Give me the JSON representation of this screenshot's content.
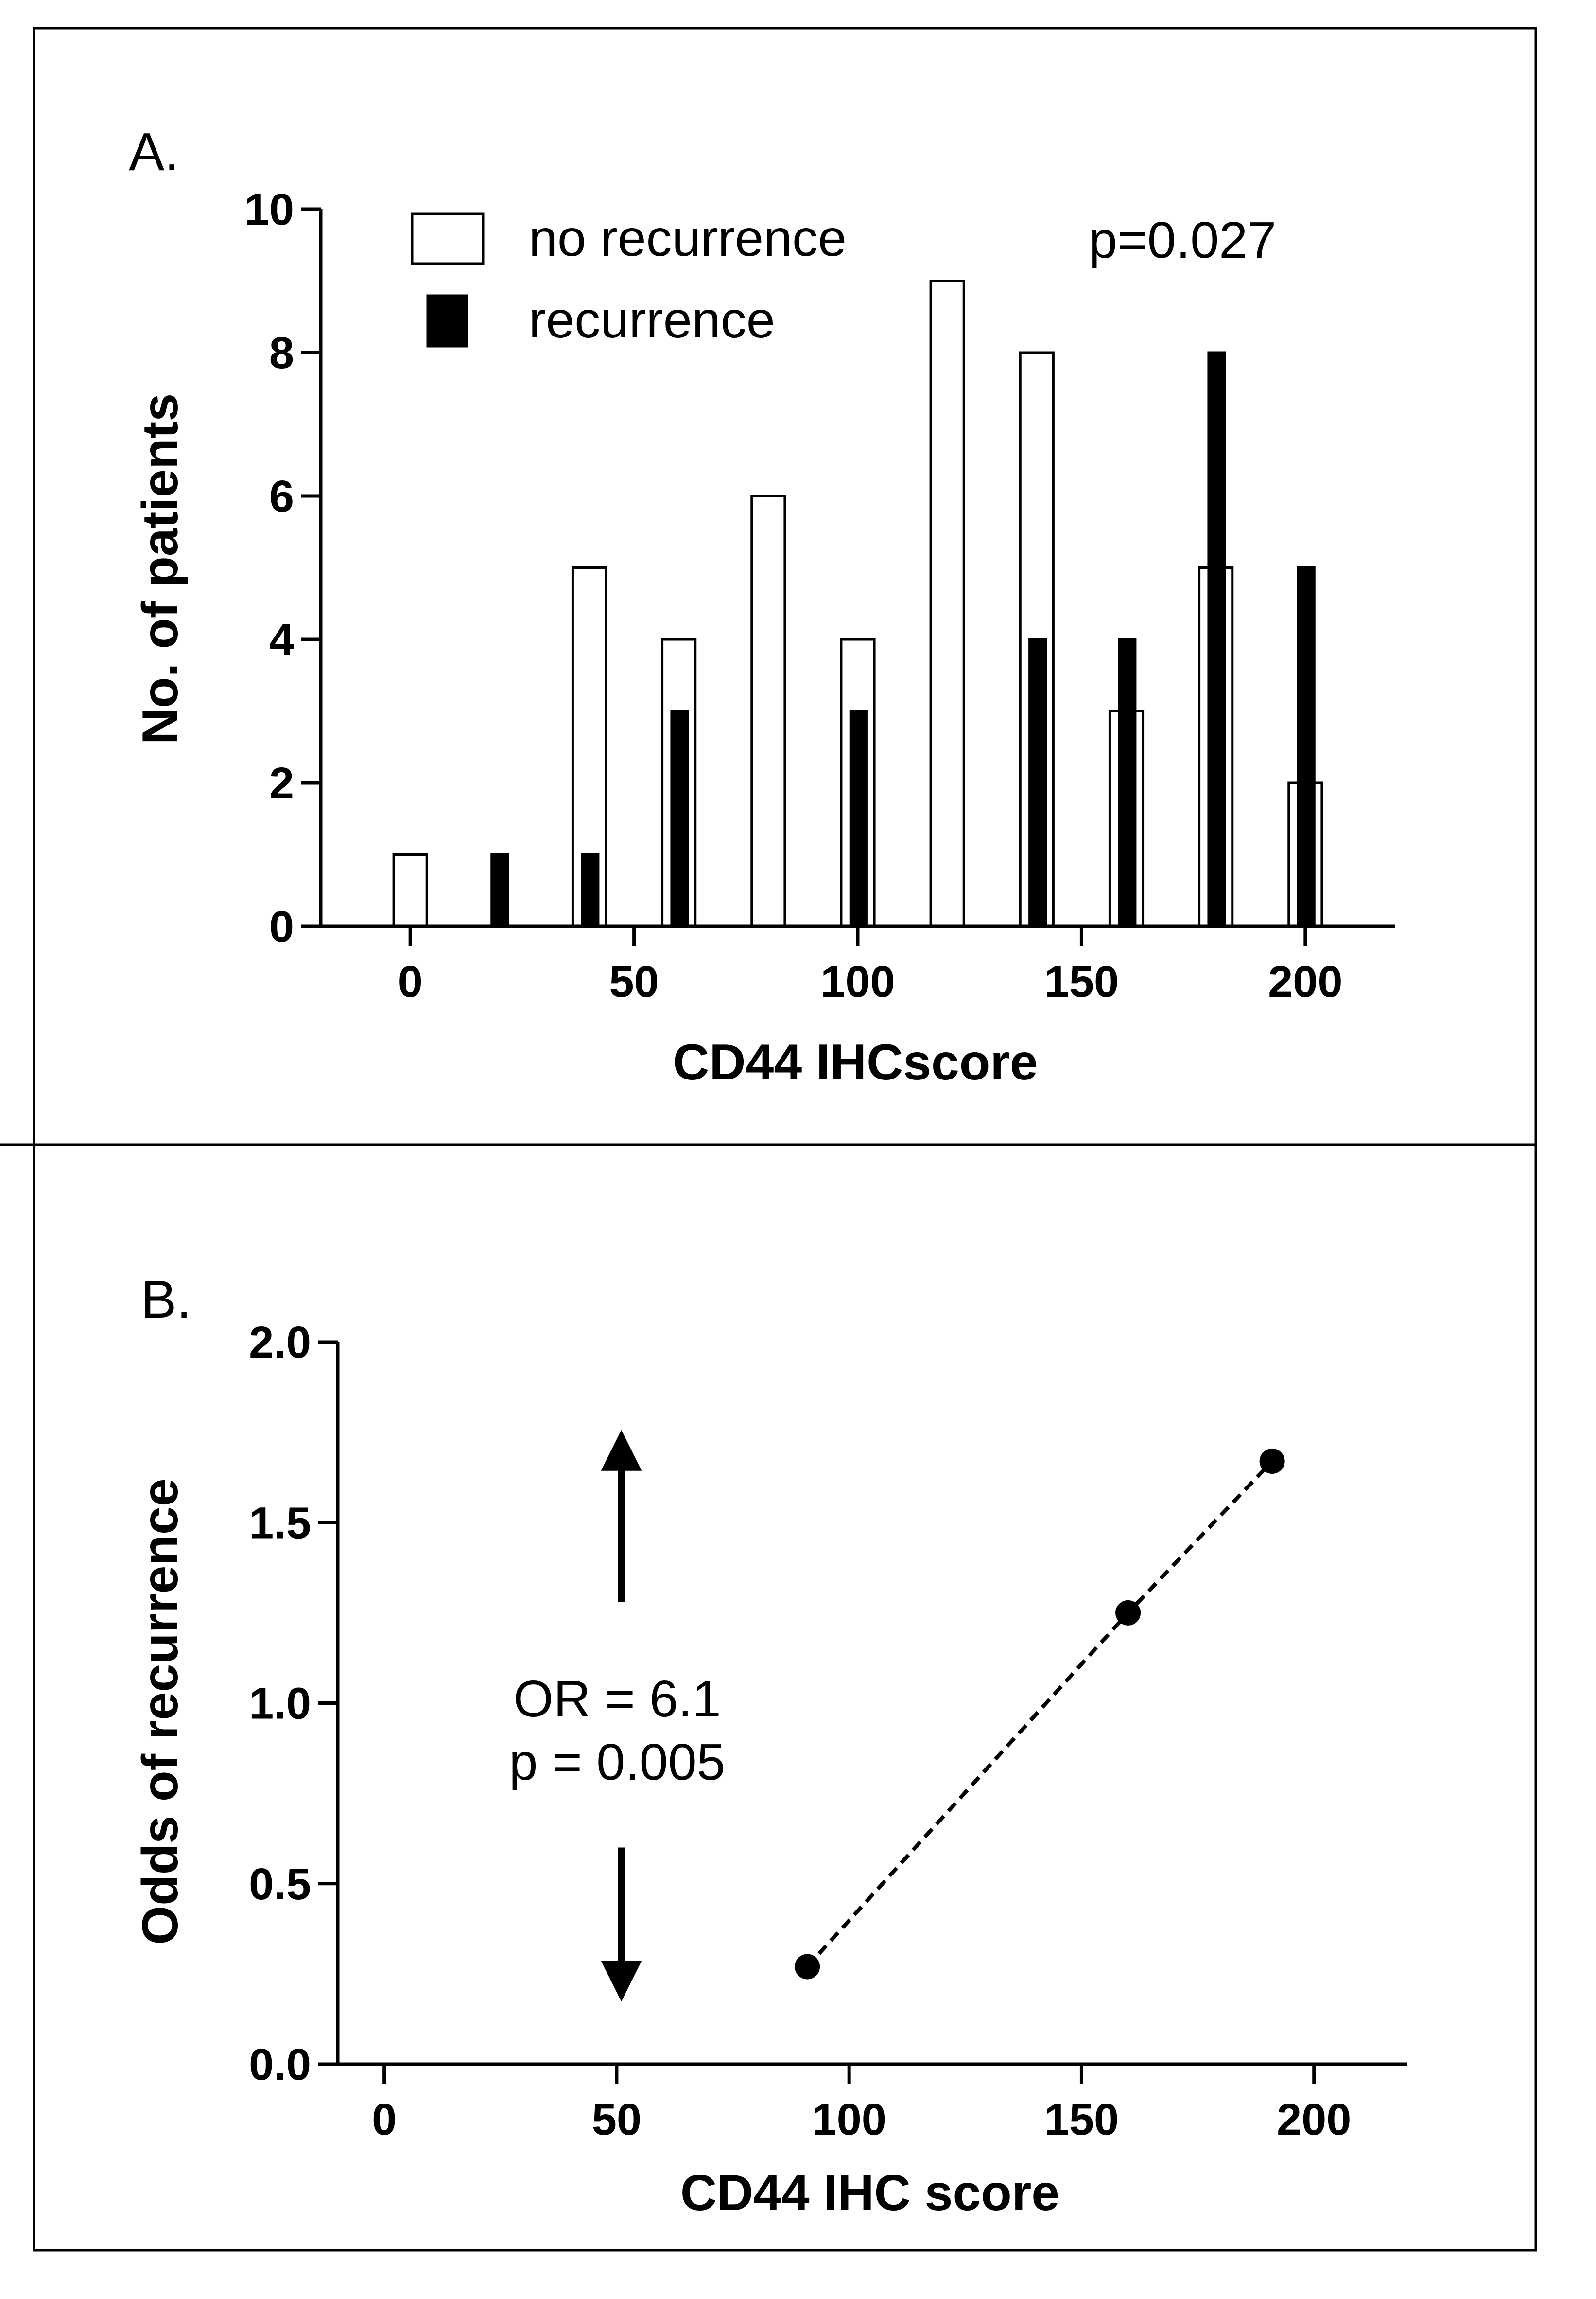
{
  "chart_data": [
    {
      "panel_label": "A.",
      "type": "bar",
      "xlabel": "CD44 IHCscore",
      "ylabel": "No. of patients",
      "xlim": [
        -20,
        220
      ],
      "ylim": [
        0,
        10
      ],
      "xticks": [
        0,
        50,
        100,
        150,
        200
      ],
      "yticks": [
        0,
        2,
        4,
        6,
        8,
        10
      ],
      "legend_position": "top-left",
      "annotation": "p=0.027",
      "bin_centers": [
        0,
        20,
        40,
        60,
        80,
        100,
        120,
        140,
        160,
        180,
        200
      ],
      "series": [
        {
          "name": "no recurrence",
          "style": "open",
          "x": [
            0,
            40,
            60,
            80,
            100,
            120,
            140,
            160,
            180,
            200
          ],
          "values": [
            1,
            5,
            4,
            6,
            4,
            9,
            8,
            3,
            5,
            2
          ]
        },
        {
          "name": "recurrence",
          "style": "filled",
          "x": [
            20,
            40,
            60,
            100,
            140,
            160,
            180,
            200
          ],
          "values": [
            1,
            1,
            3,
            3,
            4,
            4,
            8,
            5
          ]
        }
      ]
    },
    {
      "panel_label": "B.",
      "type": "scatter",
      "xlabel": "CD44 IHC score",
      "ylabel": "Odds of recurrence",
      "xlim": [
        -10,
        220
      ],
      "ylim": [
        0,
        2
      ],
      "xticks": [
        0,
        50,
        100,
        150,
        200
      ],
      "yticks": [
        "0.0",
        "0.5",
        "1.0",
        "1.5",
        "2.0"
      ],
      "points": {
        "x": [
          91,
          160,
          191
        ],
        "y": [
          0.27,
          1.25,
          1.67
        ]
      },
      "trendline": "dashed",
      "annotation": [
        "OR = 6.1",
        "p = 0.005"
      ],
      "arrows": [
        {
          "direction": "up",
          "x": 51,
          "from": 1.28,
          "to": 1.7
        },
        {
          "direction": "down",
          "x": 51,
          "from": 0.6,
          "to": 0.23
        }
      ]
    }
  ]
}
